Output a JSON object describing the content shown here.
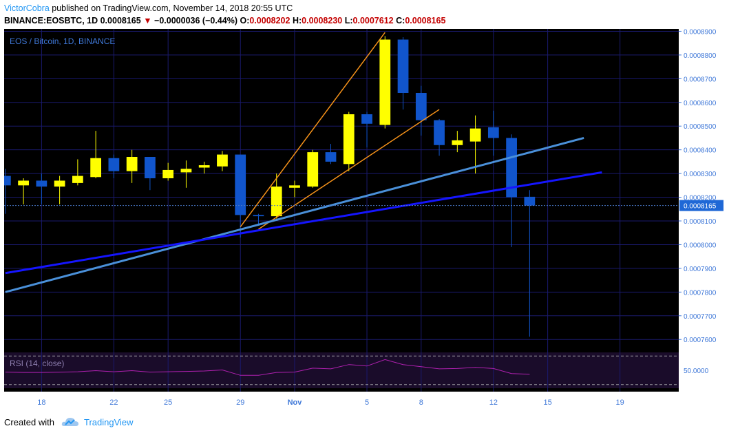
{
  "header": {
    "author": "VictorCobra",
    "published_text": "published on TradingView.com, November 14, 2018 20:55 UTC",
    "symbol": "BINANCE:EOSBTC, 1D",
    "last": "0.0008165",
    "change_arrow": "▼",
    "change": "−0.0000036 (−0.44%)",
    "o_label": "O:",
    "o": "0.0008202",
    "h_label": "H:",
    "h": "0.0008230",
    "l_label": "L:",
    "l": "0.0007612",
    "c_label": "C:",
    "c": "0.0008165"
  },
  "footer": {
    "created_with": "Created with",
    "brand": "TradingView"
  },
  "colors": {
    "background": "#000000",
    "grid": "#1a1a6e",
    "bull": "#ffff00",
    "bear": "#1155cc",
    "orange": "#f7931a",
    "steel": "#4a90d9",
    "blue": "#1515ff",
    "rsi": "#b020b0",
    "rsi_bg": "#1a0c2a",
    "axis_text": "#3f78d8",
    "price_tag_bg": "#1f68d6"
  },
  "chart_data": {
    "type": "candlestick",
    "title": "EOS / Bitcoin, 1D, BINANCE",
    "ylim": [
      0.000756,
      0.000891
    ],
    "y_ticks": [
      "0.0007600",
      "0.0007700",
      "0.0007800",
      "0.0007900",
      "0.0008000",
      "0.0008100",
      "0.0008200",
      "0.0008300",
      "0.0008400",
      "0.0008500",
      "0.0008600",
      "0.0008700",
      "0.0008800",
      "0.0008900"
    ],
    "x_ticks": [
      {
        "label": "18",
        "day": 18
      },
      {
        "label": "22",
        "day": 22
      },
      {
        "label": "25",
        "day": 25
      },
      {
        "label": "29",
        "day": 29
      },
      {
        "label": "Nov",
        "day": 32,
        "bold": true
      },
      {
        "label": "5",
        "day": 36
      },
      {
        "label": "8",
        "day": 39
      },
      {
        "label": "12",
        "day": 43
      },
      {
        "label": "15",
        "day": 46
      },
      {
        "label": "19",
        "day": 50
      }
    ],
    "x_range": [
      15.93,
      53.25
    ],
    "candles": [
      {
        "day": 16,
        "o": 0.000829,
        "h": 0.000832,
        "l": 0.000813,
        "c": 0.000825
      },
      {
        "day": 17,
        "o": 0.000825,
        "h": 0.000828,
        "l": 0.000817,
        "c": 0.000827
      },
      {
        "day": 18,
        "o": 0.000827,
        "h": 0.00083,
        "l": 0.000817,
        "c": 0.0008245
      },
      {
        "day": 19,
        "o": 0.0008245,
        "h": 0.000829,
        "l": 0.000817,
        "c": 0.000827
      },
      {
        "day": 20,
        "o": 0.000826,
        "h": 0.000836,
        "l": 0.000825,
        "c": 0.000829
      },
      {
        "day": 21,
        "o": 0.0008285,
        "h": 0.000848,
        "l": 0.000828,
        "c": 0.0008365
      },
      {
        "day": 22,
        "o": 0.0008365,
        "h": 0.000838,
        "l": 0.000828,
        "c": 0.000831
      },
      {
        "day": 23,
        "o": 0.000831,
        "h": 0.00084,
        "l": 0.000826,
        "c": 0.000837
      },
      {
        "day": 24,
        "o": 0.000837,
        "h": 0.000837,
        "l": 0.000823,
        "c": 0.000828
      },
      {
        "day": 25,
        "o": 0.000828,
        "h": 0.0008345,
        "l": 0.000827,
        "c": 0.0008315
      },
      {
        "day": 26,
        "o": 0.0008305,
        "h": 0.0008355,
        "l": 0.000824,
        "c": 0.000832
      },
      {
        "day": 27,
        "o": 0.0008325,
        "h": 0.000835,
        "l": 0.00083,
        "c": 0.0008335
      },
      {
        "day": 28,
        "o": 0.000833,
        "h": 0.0008395,
        "l": 0.000831,
        "c": 0.000838
      },
      {
        "day": 29,
        "o": 0.000838,
        "h": 0.000838,
        "l": 0.000803,
        "c": 0.0008125
      },
      {
        "day": 30,
        "o": 0.0008125,
        "h": 0.000813,
        "l": 0.000808,
        "c": 0.000812
      },
      {
        "day": 31,
        "o": 0.000812,
        "h": 0.00083,
        "l": 0.000811,
        "c": 0.0008245
      },
      {
        "day": 32,
        "o": 0.000824,
        "h": 0.000827,
        "l": 0.00082,
        "c": 0.000825
      },
      {
        "day": 33,
        "o": 0.0008245,
        "h": 0.00084,
        "l": 0.000824,
        "c": 0.000839
      },
      {
        "day": 34,
        "o": 0.000839,
        "h": 0.0008425,
        "l": 0.000834,
        "c": 0.000835
      },
      {
        "day": 35,
        "o": 0.000834,
        "h": 0.000856,
        "l": 0.000831,
        "c": 0.000855
      },
      {
        "day": 36,
        "o": 0.000855,
        "h": 0.000856,
        "l": 0.000841,
        "c": 0.000851
      },
      {
        "day": 37,
        "o": 0.0008505,
        "h": 0.000888,
        "l": 0.000849,
        "c": 0.0008865
      },
      {
        "day": 38,
        "o": 0.0008865,
        "h": 0.0008875,
        "l": 0.000857,
        "c": 0.000864
      },
      {
        "day": 39,
        "o": 0.000864,
        "h": 0.000867,
        "l": 0.000846,
        "c": 0.0008525
      },
      {
        "day": 40,
        "o": 0.0008525,
        "h": 0.000853,
        "l": 0.0008375,
        "c": 0.000842
      },
      {
        "day": 41,
        "o": 0.000842,
        "h": 0.000848,
        "l": 0.000839,
        "c": 0.000844
      },
      {
        "day": 42,
        "o": 0.0008435,
        "h": 0.0008545,
        "l": 0.00083,
        "c": 0.000849
      },
      {
        "day": 43,
        "o": 0.0008495,
        "h": 0.0008565,
        "l": 0.0008375,
        "c": 0.000845
      },
      {
        "day": 44,
        "o": 0.000845,
        "h": 0.0008465,
        "l": 0.000799,
        "c": 0.00082
      },
      {
        "day": 45,
        "o": 0.0008202,
        "h": 0.000823,
        "l": 0.0007612,
        "c": 0.0008165
      }
    ],
    "lines": [
      {
        "name": "orange-line-1",
        "color": "orange",
        "width": 1.5,
        "p1": {
          "day": 29,
          "price": 0.0008075
        },
        "p2": {
          "day": 37,
          "price": 0.0008895
        }
      },
      {
        "name": "orange-line-2",
        "color": "orange",
        "width": 1.5,
        "p1": {
          "day": 30,
          "price": 0.0008065
        },
        "p2": {
          "day": 40,
          "price": 0.000857
        }
      },
      {
        "name": "steel-trendline",
        "color": "steel",
        "width": 3,
        "p1": {
          "day": 16,
          "price": 0.00078
        },
        "p2": {
          "day": 48,
          "price": 0.000845
        }
      },
      {
        "name": "blue-trendline",
        "color": "blue",
        "width": 3,
        "p1": {
          "day": 16,
          "price": 0.000788
        },
        "p2": {
          "day": 49,
          "price": 0.0008305
        }
      }
    ],
    "last_price_label": "0.0008165",
    "rsi": {
      "label": "RSI (14, close)",
      "level_label": "50.0000",
      "level": 50,
      "upper": 70,
      "lower": 30,
      "ylim": [
        25,
        75
      ],
      "values": [
        {
          "day": 16,
          "v": 47.5
        },
        {
          "day": 17,
          "v": 47
        },
        {
          "day": 18,
          "v": 47
        },
        {
          "day": 19,
          "v": 47.3
        },
        {
          "day": 20,
          "v": 48
        },
        {
          "day": 21,
          "v": 49.5
        },
        {
          "day": 22,
          "v": 48
        },
        {
          "day": 23,
          "v": 49.5
        },
        {
          "day": 24,
          "v": 47.5
        },
        {
          "day": 25,
          "v": 48
        },
        {
          "day": 26,
          "v": 48.5
        },
        {
          "day": 27,
          "v": 49
        },
        {
          "day": 28,
          "v": 50.5
        },
        {
          "day": 29,
          "v": 43
        },
        {
          "day": 30,
          "v": 43
        },
        {
          "day": 31,
          "v": 47
        },
        {
          "day": 32,
          "v": 47.5
        },
        {
          "day": 33,
          "v": 53
        },
        {
          "day": 34,
          "v": 52
        },
        {
          "day": 35,
          "v": 58
        },
        {
          "day": 36,
          "v": 56
        },
        {
          "day": 37,
          "v": 65
        },
        {
          "day": 38,
          "v": 58
        },
        {
          "day": 39,
          "v": 55
        },
        {
          "day": 40,
          "v": 52
        },
        {
          "day": 41,
          "v": 52.5
        },
        {
          "day": 42,
          "v": 54
        },
        {
          "day": 43,
          "v": 52.5
        },
        {
          "day": 44,
          "v": 45.5
        },
        {
          "day": 45,
          "v": 44.5
        }
      ]
    }
  }
}
